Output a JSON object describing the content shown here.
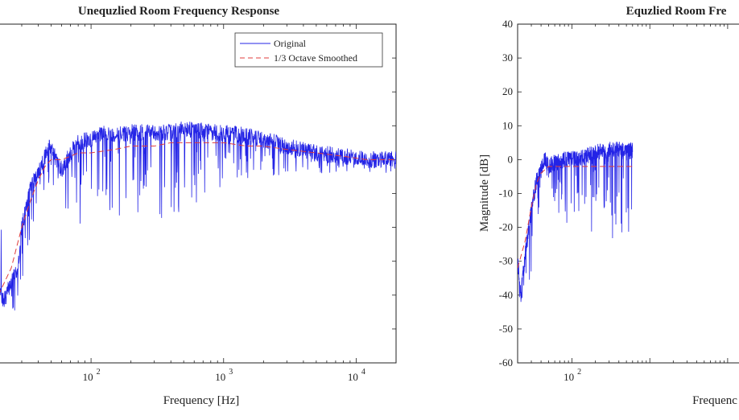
{
  "chart_data": [
    {
      "type": "line",
      "title": "Unequzlied Room Frequency Response",
      "xlabel": "Frequency [Hz]",
      "ylabel": "",
      "xscale": "log",
      "xlim": [
        20,
        20000
      ],
      "ylim": [
        -60,
        40
      ],
      "x_ticks": [
        {
          "value": 100,
          "label": "10",
          "exp": "2"
        },
        {
          "value": 1000,
          "label": "10",
          "exp": "3"
        },
        {
          "value": 10000,
          "label": "10",
          "exp": "4"
        }
      ],
      "y_ticks": [],
      "grid": false,
      "legend": {
        "position": "top-right",
        "entries": [
          "Original",
          "1/3 Octave Smoothed"
        ]
      },
      "series": [
        {
          "name": "Original",
          "color": "#2323e6",
          "style": "solid",
          "anchors": [
            [
              20,
              -38
            ],
            [
              22,
              -42
            ],
            [
              25,
              -36
            ],
            [
              28,
              -32
            ],
            [
              30,
              -20
            ],
            [
              35,
              -8
            ],
            [
              40,
              -4
            ],
            [
              45,
              1
            ],
            [
              50,
              5
            ],
            [
              55,
              -1
            ],
            [
              60,
              -3
            ],
            [
              70,
              2
            ],
            [
              80,
              5
            ],
            [
              100,
              6
            ],
            [
              130,
              8
            ],
            [
              150,
              7
            ],
            [
              200,
              8
            ],
            [
              300,
              8
            ],
            [
              400,
              8
            ],
            [
              500,
              9
            ],
            [
              600,
              9
            ],
            [
              800,
              8
            ],
            [
              1000,
              8
            ],
            [
              1500,
              7
            ],
            [
              2000,
              6
            ],
            [
              3000,
              4
            ],
            [
              5000,
              2
            ],
            [
              8000,
              1
            ],
            [
              12000,
              0
            ],
            [
              20000,
              0
            ]
          ],
          "dip_min": [
            20,
            -48,
            -48,
            -44,
            -36,
            -22,
            -18,
            -14,
            -8,
            -10,
            -14,
            -18,
            -20,
            -18,
            -14,
            -16,
            -18,
            -18,
            -18,
            -16,
            -14,
            -12,
            -8,
            -6,
            -6,
            -4,
            -4,
            -4,
            -4,
            -4
          ]
        },
        {
          "name": "1/3 Octave Smoothed",
          "color": "#e03c3c",
          "style": "dashed",
          "points": [
            [
              20,
              -40
            ],
            [
              25,
              -32
            ],
            [
              30,
              -20
            ],
            [
              35,
              -12
            ],
            [
              40,
              -6
            ],
            [
              45,
              -2
            ],
            [
              50,
              0
            ],
            [
              60,
              0
            ],
            [
              70,
              1
            ],
            [
              80,
              2
            ],
            [
              100,
              2
            ],
            [
              150,
              3
            ],
            [
              200,
              4
            ],
            [
              300,
              4
            ],
            [
              400,
              5
            ],
            [
              500,
              5
            ],
            [
              700,
              5
            ],
            [
              1000,
              5
            ],
            [
              1500,
              4
            ],
            [
              2000,
              4
            ],
            [
              3000,
              3
            ],
            [
              5000,
              2
            ],
            [
              8000,
              1
            ],
            [
              12000,
              0
            ],
            [
              20000,
              0
            ]
          ]
        }
      ]
    },
    {
      "type": "line",
      "title": "Equzlied Room Fre",
      "xlabel": "Frequenc",
      "ylabel": "Magnitude [dB]",
      "xscale": "log",
      "xlim": [
        20,
        20000
      ],
      "ylim": [
        -60,
        40
      ],
      "x_ticks": [
        {
          "value": 100,
          "label": "10",
          "exp": "2"
        }
      ],
      "y_ticks": [
        40,
        30,
        20,
        10,
        0,
        -10,
        -20,
        -30,
        -40,
        -50,
        -60
      ],
      "grid": false,
      "series": [
        {
          "name": "",
          "color": "#2323e6",
          "style": "solid",
          "anchors": [
            [
              20,
              -30
            ],
            [
              22,
              -40
            ],
            [
              25,
              -28
            ],
            [
              30,
              -15
            ],
            [
              35,
              -6
            ],
            [
              40,
              -3
            ],
            [
              45,
              0
            ],
            [
              50,
              -2
            ],
            [
              60,
              -1
            ],
            [
              80,
              0
            ],
            [
              100,
              0
            ],
            [
              150,
              1
            ],
            [
              200,
              2
            ],
            [
              300,
              3
            ],
            [
              400,
              3
            ],
            [
              500,
              2
            ],
            [
              600,
              3
            ]
          ],
          "dip_min": [
            -42,
            -42,
            -40,
            -36,
            -22,
            -14,
            -10,
            -6,
            -14,
            -20,
            -16,
            -18,
            -24,
            -26,
            -24,
            -26,
            -20
          ]
        },
        {
          "name": "",
          "color": "#e03c3c",
          "style": "dashed",
          "points": [
            [
              20,
              -32
            ],
            [
              25,
              -24
            ],
            [
              30,
              -14
            ],
            [
              35,
              -7
            ],
            [
              40,
              -4
            ],
            [
              50,
              -2
            ],
            [
              70,
              -2
            ],
            [
              100,
              -2
            ],
            [
              200,
              -2
            ],
            [
              300,
              -2
            ],
            [
              600,
              -2
            ]
          ]
        }
      ]
    }
  ]
}
